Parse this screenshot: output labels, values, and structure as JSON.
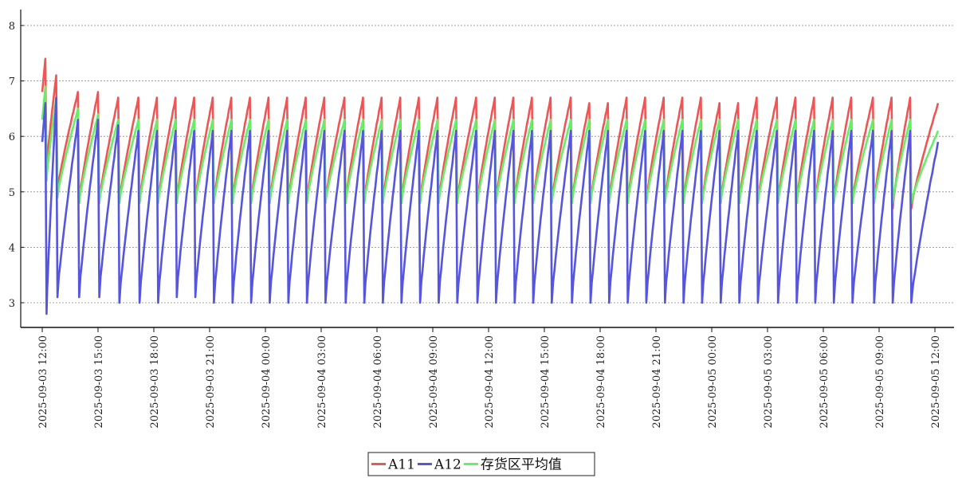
{
  "chart_data": {
    "type": "line",
    "title": "",
    "xlabel": "",
    "ylabel": "",
    "ylim": [
      2.6,
      8.3
    ],
    "y_ticks": [
      3,
      4,
      5,
      6,
      7,
      8
    ],
    "grid": "horizontal-dotted",
    "legend_position": "bottom-center",
    "x_range": [
      "2025-09-03 12:00",
      "2025-09-05 12:30"
    ],
    "x_tick_labels": [
      "2025-09-03  12:00",
      "2025-09-03  15:00",
      "2025-09-03  18:00",
      "2025-09-03  21:00",
      "2025-09-04  00:00",
      "2025-09-04  03:00",
      "2025-09-04  06:00",
      "2025-09-04  09:00",
      "2025-09-04  12:00",
      "2025-09-04  15:00",
      "2025-09-04  18:00",
      "2025-09-04  21:00",
      "2025-09-05  00:00",
      "2025-09-05  03:00",
      "2025-09-05  06:00",
      "2025-09-05  09:00",
      "2025-09-05  12:00"
    ],
    "cycle_peak_times": [
      "2025-09-03 12:10",
      "2025-09-03 12:45",
      "2025-09-03 13:55",
      "2025-09-03 15:00",
      "2025-09-03 16:05",
      "2025-09-03 17:10",
      "2025-09-03 18:10",
      "2025-09-03 19:10",
      "2025-09-03 20:10",
      "2025-09-03 21:10",
      "2025-09-03 22:10",
      "2025-09-03 23:10",
      "2025-09-04 00:10",
      "2025-09-04 01:10",
      "2025-09-04 02:10",
      "2025-09-04 03:10",
      "2025-09-04 04:15",
      "2025-09-04 05:15",
      "2025-09-04 06:15",
      "2025-09-04 07:15",
      "2025-09-04 08:15",
      "2025-09-04 09:15",
      "2025-09-04 10:15",
      "2025-09-04 11:20",
      "2025-09-04 12:20",
      "2025-09-04 13:20",
      "2025-09-04 14:20",
      "2025-09-04 15:20",
      "2025-09-04 16:25",
      "2025-09-04 17:25",
      "2025-09-04 18:25",
      "2025-09-04 19:25",
      "2025-09-04 20:25",
      "2025-09-04 21:25",
      "2025-09-04 22:25",
      "2025-09-04 23:25",
      "2025-09-05 00:25",
      "2025-09-05 01:25",
      "2025-09-05 02:25",
      "2025-09-05 03:30",
      "2025-09-05 04:30",
      "2025-09-05 05:30",
      "2025-09-05 06:30",
      "2025-09-05 07:30",
      "2025-09-05 08:40",
      "2025-09-05 09:40",
      "2025-09-05 10:40",
      "2025-09-05 12:10"
    ],
    "series": [
      {
        "name": "A11",
        "color": "#ee5555",
        "peaks": [
          7.4,
          7.1,
          6.8,
          6.8,
          6.7,
          6.7,
          6.7,
          6.7,
          6.7,
          6.7,
          6.7,
          6.7,
          6.7,
          6.7,
          6.7,
          6.7,
          6.7,
          6.7,
          6.7,
          6.7,
          6.7,
          6.7,
          6.7,
          6.7,
          6.7,
          6.7,
          6.7,
          6.7,
          6.7,
          6.6,
          6.6,
          6.7,
          6.7,
          6.7,
          6.7,
          6.7,
          6.6,
          6.6,
          6.7,
          6.7,
          6.7,
          6.7,
          6.7,
          6.7,
          6.7,
          6.7,
          6.7,
          6.6
        ],
        "troughs": [
          5.4,
          5.0,
          4.8,
          4.8,
          4.8,
          4.8,
          4.8,
          4.8,
          4.8,
          4.8,
          4.8,
          4.8,
          4.8,
          4.8,
          4.8,
          4.8,
          4.8,
          4.8,
          4.8,
          4.8,
          4.8,
          4.8,
          4.8,
          4.8,
          4.8,
          4.8,
          4.8,
          4.8,
          4.8,
          4.8,
          4.8,
          4.8,
          4.8,
          4.8,
          4.8,
          4.8,
          4.8,
          4.8,
          4.8,
          4.8,
          4.8,
          4.8,
          4.8,
          4.8,
          4.8,
          4.7,
          4.7
        ]
      },
      {
        "name": "A12",
        "color": "#5555dd",
        "peaks": [
          6.6,
          6.7,
          6.3,
          6.3,
          6.2,
          6.1,
          6.1,
          6.1,
          6.1,
          6.1,
          6.1,
          6.1,
          6.1,
          6.1,
          6.1,
          6.1,
          6.1,
          6.1,
          6.1,
          6.1,
          6.1,
          6.1,
          6.1,
          6.1,
          6.1,
          6.1,
          6.1,
          6.1,
          6.1,
          6.1,
          6.1,
          6.1,
          6.1,
          6.1,
          6.1,
          6.1,
          6.1,
          6.1,
          6.1,
          6.1,
          6.1,
          6.1,
          6.1,
          6.1,
          6.1,
          6.1,
          6.1,
          5.9
        ],
        "troughs": [
          2.8,
          3.1,
          3.1,
          3.1,
          3.0,
          3.0,
          3.0,
          3.1,
          3.1,
          3.0,
          3.0,
          3.0,
          3.0,
          3.0,
          3.0,
          3.0,
          3.0,
          3.0,
          3.0,
          3.0,
          3.0,
          3.0,
          3.0,
          3.0,
          3.0,
          3.0,
          3.0,
          3.0,
          3.0,
          3.0,
          3.0,
          3.0,
          3.0,
          3.0,
          3.0,
          3.0,
          3.0,
          3.0,
          3.0,
          3.0,
          3.0,
          3.0,
          3.0,
          3.0,
          3.0,
          3.0,
          3.0
        ]
      },
      {
        "name": "存货区平均值",
        "color": "#66ee66",
        "peaks": [
          6.9,
          6.7,
          6.5,
          6.4,
          6.3,
          6.3,
          6.3,
          6.3,
          6.3,
          6.3,
          6.3,
          6.3,
          6.3,
          6.3,
          6.3,
          6.3,
          6.3,
          6.3,
          6.3,
          6.3,
          6.3,
          6.3,
          6.3,
          6.3,
          6.3,
          6.3,
          6.3,
          6.3,
          6.3,
          6.3,
          6.3,
          6.3,
          6.3,
          6.3,
          6.3,
          6.3,
          6.3,
          6.3,
          6.3,
          6.3,
          6.3,
          6.3,
          6.3,
          6.3,
          6.3,
          6.3,
          6.3,
          6.1
        ],
        "troughs": [
          5.2,
          4.9,
          4.8,
          4.8,
          4.8,
          4.8,
          4.8,
          4.8,
          4.8,
          4.8,
          4.8,
          4.8,
          4.8,
          4.8,
          4.8,
          4.8,
          4.8,
          4.8,
          4.8,
          4.8,
          4.8,
          4.8,
          4.8,
          4.8,
          4.8,
          4.8,
          4.8,
          4.8,
          4.8,
          4.8,
          4.8,
          4.8,
          4.8,
          4.8,
          4.8,
          4.8,
          4.8,
          4.8,
          4.8,
          4.8,
          4.8,
          4.8,
          4.8,
          4.8,
          4.8,
          4.8,
          4.8
        ]
      }
    ]
  }
}
